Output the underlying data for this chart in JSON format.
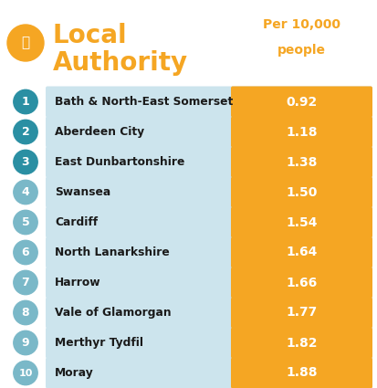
{
  "title_line1": "Local",
  "title_line2": "Authority",
  "col_header": "Per 10,000\npeople",
  "background_color": "#ffffff",
  "header_color": "#f5a623",
  "row_bg_color": "#cce4ed",
  "circle_color_top3": "#2a8fa3",
  "circle_color_rest": "#7ab8c8",
  "trophy_bg_color": "#f5a623",
  "bar_color": "#f5a623",
  "text_color_dark": "#1a1a1a",
  "text_color_white": "#ffffff",
  "rows": [
    {
      "rank": 1,
      "name": "Bath & North-East Somerset",
      "value": "0.92"
    },
    {
      "rank": 2,
      "name": "Aberdeen City",
      "value": "1.18"
    },
    {
      "rank": 3,
      "name": "East Dunbartonshire",
      "value": "1.38"
    },
    {
      "rank": 4,
      "name": "Swansea",
      "value": "1.50"
    },
    {
      "rank": 5,
      "name": "Cardiff",
      "value": "1.54"
    },
    {
      "rank": 6,
      "name": "North Lanarkshire",
      "value": "1.64"
    },
    {
      "rank": 7,
      "name": "Harrow",
      "value": "1.66"
    },
    {
      "rank": 8,
      "name": "Vale of Glamorgan",
      "value": "1.77"
    },
    {
      "rank": 9,
      "name": "Merthyr Tydfil",
      "value": "1.82"
    },
    {
      "rank": 10,
      "name": "Moray",
      "value": "1.88"
    }
  ],
  "figsize": [
    4.14,
    4.25
  ],
  "dpi": 100
}
